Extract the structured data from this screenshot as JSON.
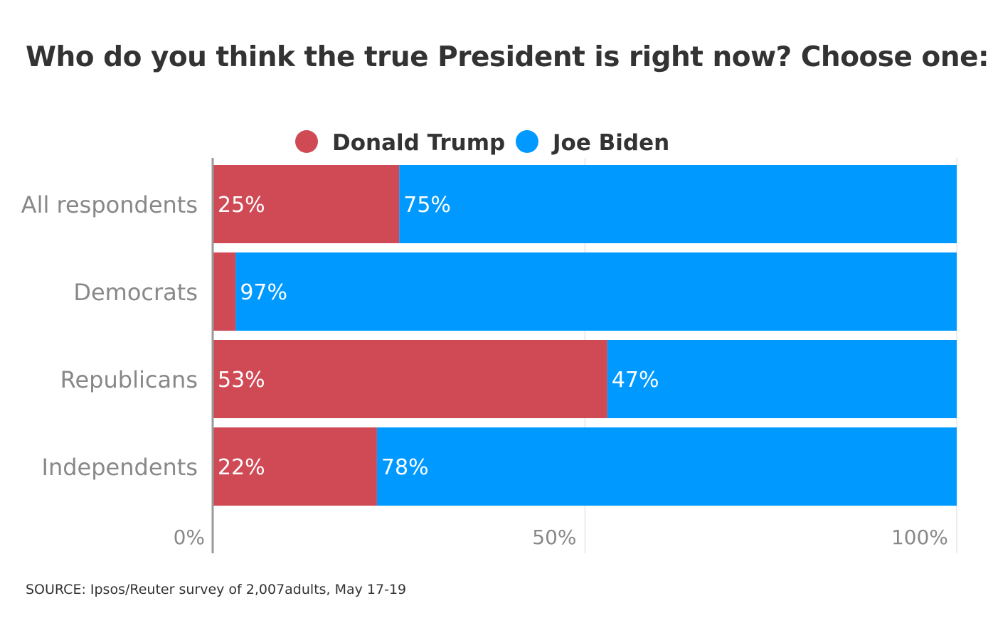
{
  "colors": {
    "Donald Trump": "#d04a55",
    "Joe Biden": "#0099ff",
    "text_dark": "#333333",
    "text_axis": "#888888",
    "grid": "#e6e6e6",
    "axis": "#999999"
  },
  "chart_data": {
    "type": "bar",
    "orientation": "horizontal",
    "stacked": true,
    "title": "Who do you think the true President is right now? Choose one:",
    "categories": [
      "All respondents",
      "Democrats",
      "Republicans",
      "Independents"
    ],
    "series": [
      {
        "name": "Donald Trump",
        "values": [
          25,
          3,
          53,
          22
        ],
        "labels": [
          "25%",
          "",
          "53%",
          "22%"
        ]
      },
      {
        "name": "Joe Biden",
        "values": [
          75,
          97,
          47,
          78
        ],
        "labels": [
          "75%",
          "97%",
          "47%",
          "78%"
        ]
      }
    ],
    "xlim": [
      0,
      100
    ],
    "x_ticks": [
      0,
      50,
      100
    ],
    "x_tick_labels": [
      "0%",
      "50%",
      "100%"
    ],
    "grid": true,
    "legend_position": "top"
  },
  "source": "SOURCE: Ipsos/Reuter survey of 2,007adults, May 17-19"
}
